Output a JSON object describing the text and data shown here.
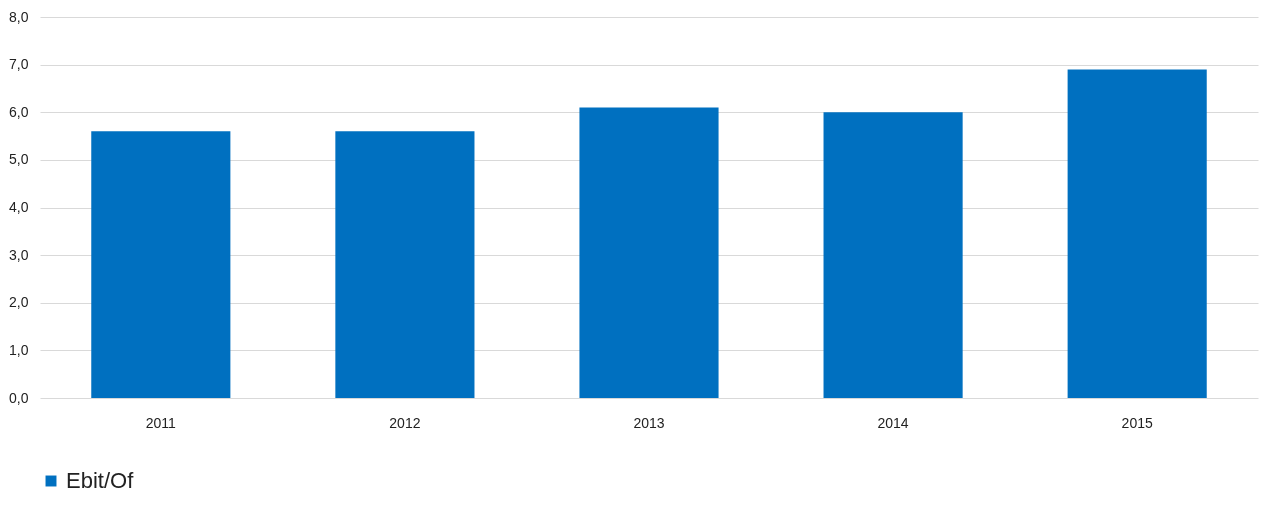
{
  "chart_data": {
    "type": "bar",
    "categories": [
      "2011",
      "2012",
      "2013",
      "2014",
      "2015"
    ],
    "series": [
      {
        "name": "Ebit/Of",
        "color": "#0070c0",
        "values": [
          5.6,
          5.6,
          6.1,
          6.0,
          6.9
        ]
      }
    ],
    "ylim": [
      0,
      8
    ],
    "yticks": [
      {
        "value": 0,
        "label": "0,0"
      },
      {
        "value": 1,
        "label": "1,0"
      },
      {
        "value": 2,
        "label": "2,0"
      },
      {
        "value": 3,
        "label": "3,0"
      },
      {
        "value": 4,
        "label": "4,0"
      },
      {
        "value": 5,
        "label": "5,0"
      },
      {
        "value": 6,
        "label": "6,0"
      },
      {
        "value": 7,
        "label": "7,0"
      },
      {
        "value": 8,
        "label": "8,0"
      }
    ],
    "grid": "y",
    "legend": "bottom"
  }
}
